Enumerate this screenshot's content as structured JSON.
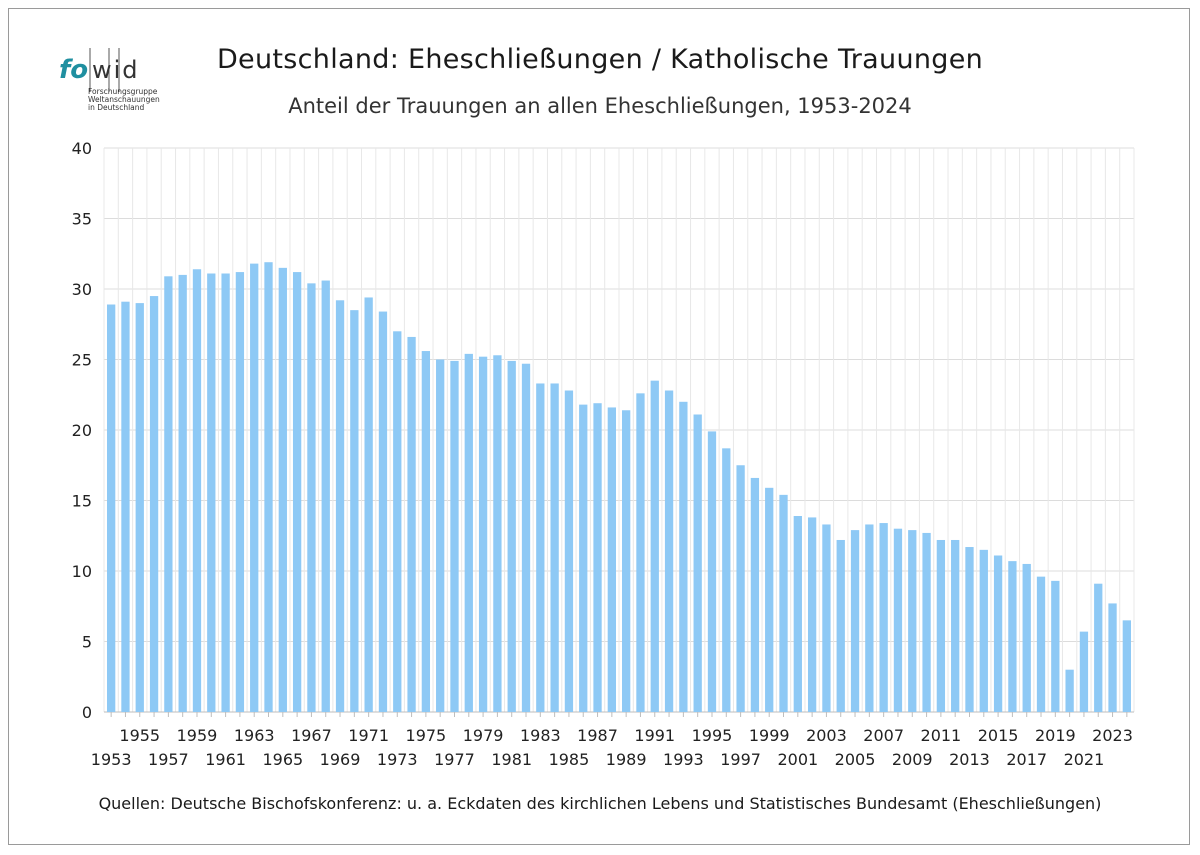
{
  "logo": {
    "wordmark_fo": "fo",
    "wordmark_wid": "wid",
    "subtitle_lines": [
      "Forschungsgruppe",
      "Weltanschauungen",
      "in Deutschland"
    ],
    "colors": {
      "fo": "#1f8fa0",
      "wid": "#333333"
    }
  },
  "title": "Deutschland: Eheschließungen / Katholische Trauungen",
  "subtitle": "Anteil der Trauungen an allen Eheschließungen, 1953-2024",
  "source": "Quellen: Deutsche Bischofskonferenz: u. a.  Eckdaten des kirchlichen Lebens und Statistisches Bundesamt (Eheschließungen)",
  "chart_data": {
    "type": "bar",
    "title": "Deutschland: Eheschließungen / Katholische Trauungen",
    "subtitle": "Anteil der Trauungen an allen Eheschließungen, 1953-2024",
    "xlabel": "",
    "ylabel": "",
    "ylim": [
      0,
      40
    ],
    "yticks": [
      0,
      5,
      10,
      15,
      20,
      25,
      30,
      35,
      40
    ],
    "grid": true,
    "bar_color": "#8ec9f5",
    "categories": [
      "1953",
      "1954",
      "1955",
      "1956",
      "1957",
      "1958",
      "1959",
      "1960",
      "1961",
      "1962",
      "1963",
      "1964",
      "1965",
      "1966",
      "1967",
      "1968",
      "1969",
      "1970",
      "1971",
      "1972",
      "1973",
      "1974",
      "1975",
      "1976",
      "1977",
      "1978",
      "1979",
      "1980",
      "1981",
      "1982",
      "1983",
      "1984",
      "1985",
      "1986",
      "1987",
      "1988",
      "1989",
      "1990",
      "1991",
      "1992",
      "1993",
      "1994",
      "1995",
      "1996",
      "1997",
      "1998",
      "1999",
      "2000",
      "2001",
      "2002",
      "2003",
      "2004",
      "2005",
      "2006",
      "2007",
      "2008",
      "2009",
      "2010",
      "2011",
      "2012",
      "2013",
      "2014",
      "2015",
      "2016",
      "2017",
      "2018",
      "2019",
      "2020",
      "2021",
      "2022",
      "2023",
      "2024"
    ],
    "x_tick_labels_upper": [
      "1955",
      "1959",
      "1963",
      "1967",
      "1971",
      "1975",
      "1979",
      "1983",
      "1987",
      "1991",
      "1995",
      "1999",
      "2003",
      "2007",
      "2011",
      "2015",
      "2019",
      "2023"
    ],
    "x_tick_labels_lower": [
      "1953",
      "1957",
      "1961",
      "1965",
      "1969",
      "1973",
      "1977",
      "1981",
      "1985",
      "1989",
      "1993",
      "1997",
      "2001",
      "2005",
      "2009",
      "2013",
      "2017",
      "2021"
    ],
    "values": [
      28.9,
      29.1,
      29.0,
      29.5,
      30.9,
      31.0,
      31.4,
      31.1,
      31.1,
      31.2,
      31.8,
      31.9,
      31.5,
      31.2,
      30.4,
      30.6,
      29.2,
      28.5,
      29.4,
      28.4,
      27.0,
      26.6,
      25.6,
      25.0,
      24.9,
      25.4,
      25.2,
      25.3,
      24.9,
      24.7,
      23.3,
      23.3,
      22.8,
      21.8,
      21.9,
      21.6,
      21.4,
      22.6,
      23.5,
      22.8,
      22.0,
      21.1,
      19.9,
      18.7,
      17.5,
      16.6,
      15.9,
      15.4,
      13.9,
      13.8,
      13.3,
      12.2,
      12.9,
      13.3,
      13.4,
      13.0,
      12.9,
      12.7,
      12.2,
      12.2,
      11.7,
      11.5,
      11.1,
      10.7,
      10.5,
      9.6,
      9.3,
      3.0,
      5.7,
      9.1,
      7.7,
      6.5
    ]
  }
}
